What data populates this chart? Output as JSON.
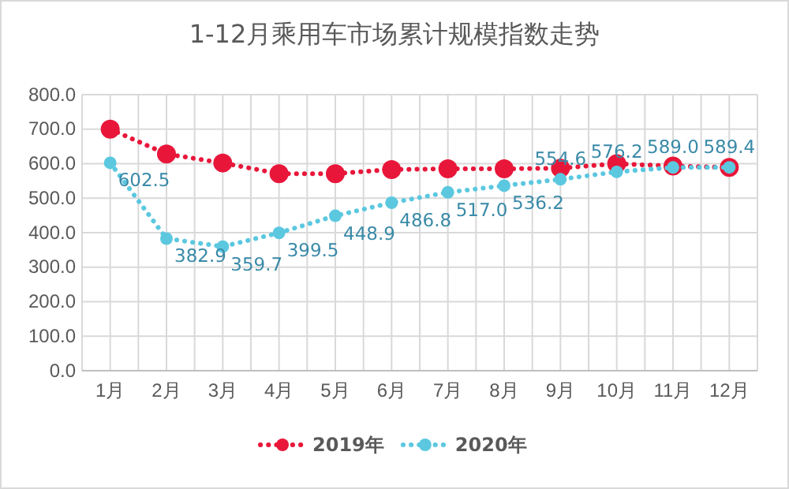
{
  "chart_data": {
    "type": "line",
    "title": "1-12月乘用车市场累计规模指数走势",
    "categories": [
      "1月",
      "2月",
      "3月",
      "4月",
      "5月",
      "6月",
      "7月",
      "8月",
      "9月",
      "10月",
      "11月",
      "12月"
    ],
    "series": [
      {
        "name": "2019年",
        "color": "#e8173a",
        "values": [
          700,
          628,
          602,
          571,
          571,
          583,
          585,
          585,
          587,
          600,
          593,
          589
        ]
      },
      {
        "name": "2020年",
        "color": "#5bc8e0",
        "values": [
          602.5,
          382.9,
          359.7,
          399.5,
          448.9,
          486.8,
          517.0,
          536.2,
          554.6,
          576.2,
          589.0,
          589.4
        ],
        "value_labels": [
          "602.5",
          "382.9",
          "359.7",
          "399.5",
          "448.9",
          "486.8",
          "517.0",
          "536.2",
          "554.6",
          "576.2",
          "589.0",
          "589.4"
        ]
      }
    ],
    "ylim": [
      0,
      800
    ],
    "yticks": [
      {
        "value": 0,
        "label": "0.0"
      },
      {
        "value": 100,
        "label": "100.0"
      },
      {
        "value": 200,
        "label": "200.0"
      },
      {
        "value": 300,
        "label": "300.0"
      },
      {
        "value": 400,
        "label": "400.0"
      },
      {
        "value": 500,
        "label": "500.0"
      },
      {
        "value": 600,
        "label": "600.0"
      },
      {
        "value": 700,
        "label": "700.0"
      },
      {
        "value": 800,
        "label": "800.0"
      }
    ],
    "grid": true,
    "legend": "bottom",
    "marker": "circle",
    "line_style": "dotted"
  }
}
